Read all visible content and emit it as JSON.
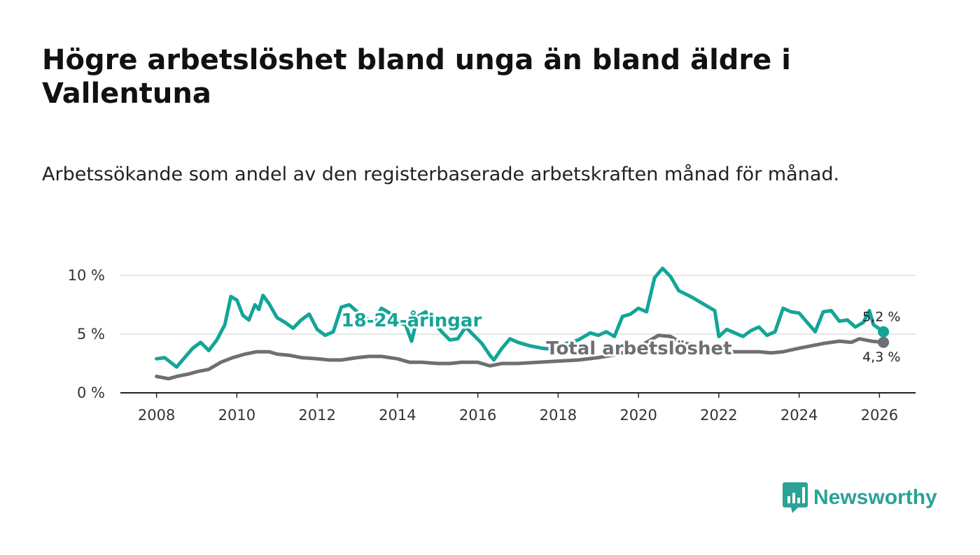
{
  "title": "Högre arbetslöshet bland unga än bland äldre i Vallentuna",
  "subtitle": "Arbetssökande som andel av den registerbaserade arbetskraften månad för månad.",
  "brand": {
    "name": "Newsworthy",
    "color": "#2aa296"
  },
  "chart_data": {
    "type": "line",
    "xlim": [
      2007.1,
      2026.9
    ],
    "ylim": [
      0,
      10
    ],
    "x_ticks": [
      2008,
      2010,
      2012,
      2014,
      2016,
      2018,
      2020,
      2022,
      2024,
      2026
    ],
    "x_tick_labels": [
      "2008",
      "2010",
      "2012",
      "2014",
      "2016",
      "2018",
      "2020",
      "2022",
      "2024",
      "2026"
    ],
    "y_ticks": [
      0,
      5,
      10
    ],
    "y_tick_labels": [
      "0 %",
      "5 %",
      "10 %"
    ],
    "grid": true,
    "series": [
      {
        "name": "Total arbetslöshet",
        "label": "Total arbetslöshet",
        "color": "#6e6e73",
        "end_label": "4,3 %",
        "points": [
          [
            2008.0,
            1.4
          ],
          [
            2008.3,
            1.2
          ],
          [
            2008.5,
            1.4
          ],
          [
            2008.8,
            1.6
          ],
          [
            2009.0,
            1.8
          ],
          [
            2009.3,
            2.0
          ],
          [
            2009.6,
            2.6
          ],
          [
            2009.9,
            3.0
          ],
          [
            2010.2,
            3.3
          ],
          [
            2010.5,
            3.5
          ],
          [
            2010.8,
            3.5
          ],
          [
            2011.0,
            3.3
          ],
          [
            2011.3,
            3.2
          ],
          [
            2011.6,
            3.0
          ],
          [
            2012.0,
            2.9
          ],
          [
            2012.3,
            2.8
          ],
          [
            2012.6,
            2.8
          ],
          [
            2013.0,
            3.0
          ],
          [
            2013.3,
            3.1
          ],
          [
            2013.6,
            3.1
          ],
          [
            2014.0,
            2.9
          ],
          [
            2014.3,
            2.6
          ],
          [
            2014.6,
            2.6
          ],
          [
            2015.0,
            2.5
          ],
          [
            2015.3,
            2.5
          ],
          [
            2015.6,
            2.6
          ],
          [
            2016.0,
            2.6
          ],
          [
            2016.3,
            2.3
          ],
          [
            2016.6,
            2.5
          ],
          [
            2017.0,
            2.5
          ],
          [
            2017.5,
            2.6
          ],
          [
            2018.0,
            2.7
          ],
          [
            2018.5,
            2.8
          ],
          [
            2019.0,
            3.0
          ],
          [
            2019.5,
            3.3
          ],
          [
            2020.0,
            3.9
          ],
          [
            2020.5,
            4.9
          ],
          [
            2020.8,
            4.8
          ],
          [
            2021.0,
            4.4
          ],
          [
            2021.5,
            3.9
          ],
          [
            2022.0,
            3.5
          ],
          [
            2022.5,
            3.5
          ],
          [
            2023.0,
            3.5
          ],
          [
            2023.3,
            3.4
          ],
          [
            2023.6,
            3.5
          ],
          [
            2024.0,
            3.8
          ],
          [
            2024.3,
            4.0
          ],
          [
            2024.6,
            4.2
          ],
          [
            2025.0,
            4.4
          ],
          [
            2025.3,
            4.3
          ],
          [
            2025.5,
            4.6
          ],
          [
            2025.8,
            4.4
          ],
          [
            2026.1,
            4.3
          ]
        ]
      },
      {
        "name": "18-24-åringar",
        "label": "18-24-åringar",
        "color": "#13a597",
        "end_label": "5,2 %",
        "points": [
          [
            2008.0,
            2.9
          ],
          [
            2008.2,
            3.0
          ],
          [
            2008.35,
            2.6
          ],
          [
            2008.5,
            2.2
          ],
          [
            2008.7,
            3.0
          ],
          [
            2008.9,
            3.8
          ],
          [
            2009.1,
            4.3
          ],
          [
            2009.3,
            3.6
          ],
          [
            2009.5,
            4.5
          ],
          [
            2009.7,
            5.8
          ],
          [
            2009.85,
            8.2
          ],
          [
            2010.0,
            7.9
          ],
          [
            2010.15,
            6.6
          ],
          [
            2010.3,
            6.2
          ],
          [
            2010.45,
            7.5
          ],
          [
            2010.55,
            7.1
          ],
          [
            2010.65,
            8.3
          ],
          [
            2010.8,
            7.6
          ],
          [
            2011.0,
            6.4
          ],
          [
            2011.2,
            6.0
          ],
          [
            2011.4,
            5.5
          ],
          [
            2011.6,
            6.2
          ],
          [
            2011.8,
            6.7
          ],
          [
            2012.0,
            5.4
          ],
          [
            2012.2,
            4.9
          ],
          [
            2012.4,
            5.2
          ],
          [
            2012.6,
            7.3
          ],
          [
            2012.8,
            7.5
          ],
          [
            2013.0,
            6.9
          ],
          [
            2013.2,
            6.4
          ],
          [
            2013.4,
            6.0
          ],
          [
            2013.6,
            7.2
          ],
          [
            2013.8,
            6.8
          ],
          [
            2014.0,
            6.0
          ],
          [
            2014.2,
            5.8
          ],
          [
            2014.35,
            4.4
          ],
          [
            2014.5,
            6.5
          ],
          [
            2014.7,
            6.9
          ],
          [
            2014.9,
            6.0
          ],
          [
            2015.1,
            5.2
          ],
          [
            2015.3,
            4.5
          ],
          [
            2015.5,
            4.6
          ],
          [
            2015.7,
            5.6
          ],
          [
            2015.9,
            4.9
          ],
          [
            2016.1,
            4.2
          ],
          [
            2016.3,
            3.2
          ],
          [
            2016.4,
            2.8
          ],
          [
            2016.6,
            3.8
          ],
          [
            2016.8,
            4.6
          ],
          [
            2017.0,
            4.3
          ],
          [
            2017.3,
            4.0
          ],
          [
            2017.6,
            3.8
          ],
          [
            2017.9,
            3.7
          ],
          [
            2018.2,
            4.2
          ],
          [
            2018.5,
            4.5
          ],
          [
            2018.8,
            5.1
          ],
          [
            2019.0,
            4.9
          ],
          [
            2019.2,
            5.2
          ],
          [
            2019.4,
            4.8
          ],
          [
            2019.6,
            6.5
          ],
          [
            2019.8,
            6.7
          ],
          [
            2020.0,
            7.2
          ],
          [
            2020.2,
            6.9
          ],
          [
            2020.4,
            9.8
          ],
          [
            2020.6,
            10.6
          ],
          [
            2020.8,
            9.9
          ],
          [
            2021.0,
            8.7
          ],
          [
            2021.3,
            8.2
          ],
          [
            2021.6,
            7.6
          ],
          [
            2021.9,
            7.0
          ],
          [
            2022.0,
            4.8
          ],
          [
            2022.2,
            5.4
          ],
          [
            2022.4,
            5.1
          ],
          [
            2022.6,
            4.8
          ],
          [
            2022.8,
            5.3
          ],
          [
            2023.0,
            5.6
          ],
          [
            2023.2,
            4.9
          ],
          [
            2023.4,
            5.2
          ],
          [
            2023.6,
            7.2
          ],
          [
            2023.8,
            6.9
          ],
          [
            2024.0,
            6.8
          ],
          [
            2024.2,
            6.0
          ],
          [
            2024.4,
            5.2
          ],
          [
            2024.6,
            6.9
          ],
          [
            2024.8,
            7.0
          ],
          [
            2025.0,
            6.1
          ],
          [
            2025.2,
            6.2
          ],
          [
            2025.4,
            5.6
          ],
          [
            2025.6,
            6.0
          ],
          [
            2025.75,
            7.0
          ],
          [
            2025.85,
            5.8
          ],
          [
            2026.1,
            5.2
          ]
        ]
      }
    ]
  }
}
